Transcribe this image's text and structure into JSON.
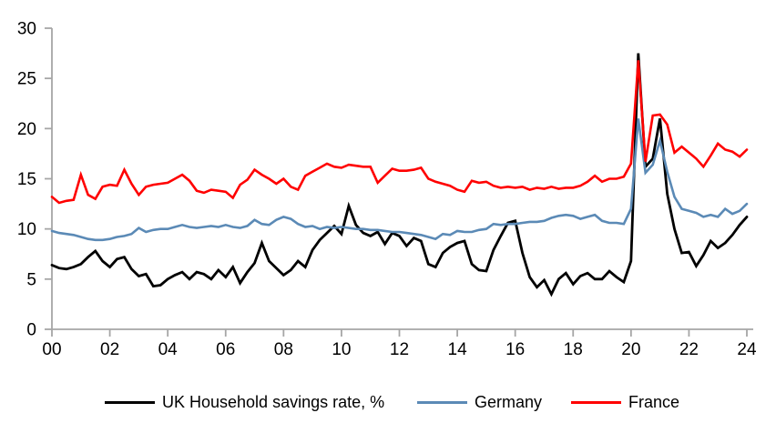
{
  "chart_data": {
    "type": "line",
    "title": "",
    "x_unit": "quarterly",
    "x_start_year": 2000,
    "x_end_year": 2024,
    "x_tick_labels": [
      "00",
      "02",
      "04",
      "06",
      "08",
      "10",
      "12",
      "14",
      "16",
      "18",
      "20",
      "22",
      "24"
    ],
    "y_ticks": [
      0,
      5,
      10,
      15,
      20,
      25,
      30
    ],
    "ylim": [
      0,
      30
    ],
    "grid": false,
    "legend_position": "bottom",
    "axis_color": "#A6A6A6",
    "series": [
      {
        "name": "UK Household savings rate, %",
        "color": "#000000",
        "values": [
          6.4,
          6.1,
          6.0,
          6.2,
          6.5,
          7.2,
          7.8,
          6.8,
          6.2,
          7.0,
          7.2,
          6.0,
          5.3,
          5.5,
          4.3,
          4.4,
          5.0,
          5.4,
          5.7,
          5.0,
          5.7,
          5.5,
          5.0,
          5.9,
          5.2,
          6.2,
          4.6,
          5.7,
          6.6,
          8.6,
          6.8,
          6.1,
          5.4,
          5.9,
          6.8,
          6.2,
          7.9,
          8.9,
          9.6,
          10.3,
          9.5,
          12.3,
          10.4,
          9.6,
          9.3,
          9.7,
          8.5,
          9.6,
          9.3,
          8.3,
          9.1,
          8.8,
          6.5,
          6.2,
          7.6,
          8.2,
          8.6,
          8.8,
          6.5,
          5.9,
          5.8,
          7.9,
          9.3,
          10.6,
          10.8,
          7.6,
          5.2,
          4.2,
          4.9,
          3.5,
          5.0,
          5.6,
          4.5,
          5.3,
          5.6,
          5.0,
          5.0,
          5.8,
          5.2,
          4.7,
          6.8,
          27.5,
          16.2,
          17.0,
          21.0,
          13.5,
          10.0,
          7.6,
          7.7,
          6.3,
          7.4,
          8.8,
          8.1,
          8.6,
          9.4,
          10.4,
          11.2
        ]
      },
      {
        "name": "Germany",
        "color": "#5B8AB6",
        "values": [
          9.8,
          9.6,
          9.5,
          9.4,
          9.2,
          9.0,
          8.9,
          8.9,
          9.0,
          9.2,
          9.3,
          9.5,
          10.1,
          9.7,
          9.9,
          10.0,
          10.0,
          10.2,
          10.4,
          10.2,
          10.1,
          10.2,
          10.3,
          10.2,
          10.4,
          10.2,
          10.1,
          10.3,
          10.9,
          10.5,
          10.4,
          10.9,
          11.2,
          11.0,
          10.5,
          10.2,
          10.3,
          10.0,
          10.2,
          10.1,
          10.2,
          10.1,
          10.0,
          10.0,
          9.9,
          9.9,
          9.8,
          9.7,
          9.7,
          9.6,
          9.5,
          9.4,
          9.2,
          9.0,
          9.5,
          9.4,
          9.8,
          9.7,
          9.7,
          9.9,
          10.0,
          10.5,
          10.4,
          10.5,
          10.5,
          10.6,
          10.7,
          10.7,
          10.8,
          11.1,
          11.3,
          11.4,
          11.3,
          11.0,
          11.2,
          11.4,
          10.8,
          10.6,
          10.6,
          10.5,
          12.0,
          21.0,
          15.6,
          16.4,
          18.8,
          15.7,
          13.2,
          12.0,
          11.8,
          11.6,
          11.2,
          11.4,
          11.2,
          12.0,
          11.5,
          11.8,
          12.5
        ]
      },
      {
        "name": "France",
        "color": "#FF0000",
        "values": [
          13.2,
          12.6,
          12.8,
          12.9,
          15.4,
          13.4,
          13.0,
          14.2,
          14.4,
          14.3,
          15.9,
          14.5,
          13.4,
          14.2,
          14.4,
          14.5,
          14.6,
          15.0,
          15.4,
          14.8,
          13.8,
          13.6,
          13.9,
          13.8,
          13.7,
          13.1,
          14.4,
          14.9,
          15.9,
          15.4,
          15.0,
          14.5,
          15.0,
          14.2,
          13.9,
          15.3,
          15.7,
          16.1,
          16.5,
          16.2,
          16.1,
          16.4,
          16.3,
          16.2,
          16.2,
          14.6,
          15.3,
          16.0,
          15.8,
          15.8,
          15.9,
          16.1,
          15.0,
          14.7,
          14.5,
          14.3,
          13.9,
          13.7,
          14.8,
          14.6,
          14.7,
          14.3,
          14.1,
          14.2,
          14.1,
          14.2,
          13.9,
          14.1,
          14.0,
          14.2,
          14.0,
          14.1,
          14.1,
          14.3,
          14.7,
          15.3,
          14.7,
          15.0,
          15.0,
          15.2,
          16.5,
          26.8,
          16.7,
          21.3,
          21.4,
          20.4,
          17.6,
          18.2,
          17.6,
          17.0,
          16.2,
          17.3,
          18.5,
          17.9,
          17.7,
          17.2,
          17.9
        ]
      }
    ]
  },
  "legend": {
    "items": [
      {
        "label": "UK Household savings rate, %",
        "color": "#000000"
      },
      {
        "label": "Germany",
        "color": "#5B8AB6"
      },
      {
        "label": "France",
        "color": "#FF0000"
      }
    ]
  }
}
